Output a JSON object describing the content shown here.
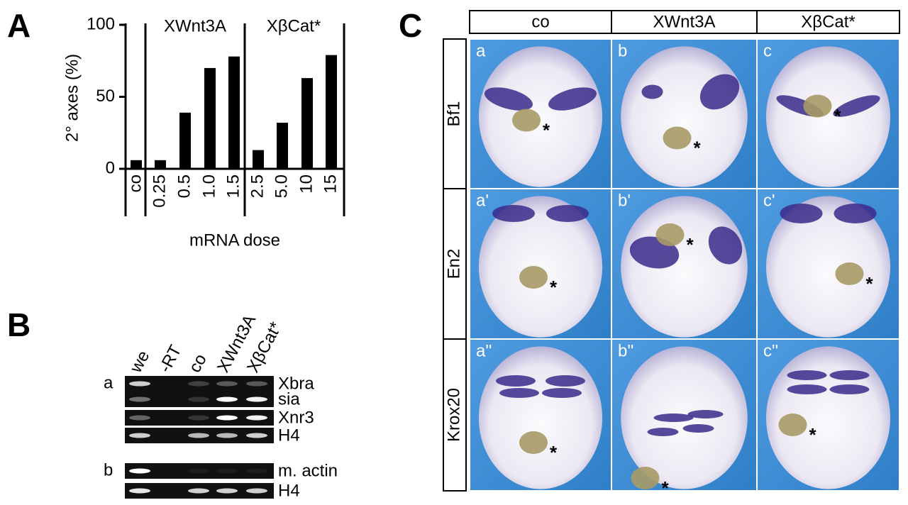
{
  "panels": {
    "a": "A",
    "b": "B",
    "c": "C"
  },
  "chart_data": {
    "type": "bar",
    "y_label": "2° axes (%)",
    "x_label": "mRNA dose",
    "categories": [
      "co",
      "0.25",
      "0.5",
      "1.0",
      "1.5",
      "2.5",
      "5.0",
      "10",
      "15"
    ],
    "values": [
      6,
      6,
      39,
      70,
      78,
      13,
      32,
      63,
      79
    ],
    "groups": [
      "XWnt3A",
      "XβCat*"
    ],
    "color": "#000000",
    "ylim": [
      0,
      100
    ],
    "yticks": [
      0,
      50,
      100
    ]
  },
  "gel": {
    "lanes": [
      "we",
      "-RT",
      "co",
      "XWnt3A",
      "XβCat*"
    ],
    "sections": [
      {
        "label": "a",
        "genes": [
          "Xbra",
          "sia",
          "Xnr3",
          "H4"
        ]
      },
      {
        "label": "b",
        "genes": [
          "m. actin",
          "H4"
        ]
      }
    ]
  },
  "images": {
    "columns": [
      "co",
      "XWnt3A",
      "XβCat*"
    ],
    "rows": [
      {
        "label": "Bf1",
        "cells": [
          {
            "label": "a",
            "annotation": "*"
          },
          {
            "label": "b",
            "annotation": "*"
          },
          {
            "label": "c",
            "annotation": "*"
          }
        ]
      },
      {
        "label": "En2",
        "cells": [
          {
            "label": "a'",
            "annotation": "*"
          },
          {
            "label": "b'",
            "annotation": "*"
          },
          {
            "label": "c'",
            "annotation": "*"
          }
        ]
      },
      {
        "label": "Krox20",
        "cells": [
          {
            "label": "a''",
            "annotation": "*"
          },
          {
            "label": "b''",
            "annotation": "*"
          },
          {
            "label": "c''",
            "annotation": "*"
          }
        ]
      }
    ]
  }
}
